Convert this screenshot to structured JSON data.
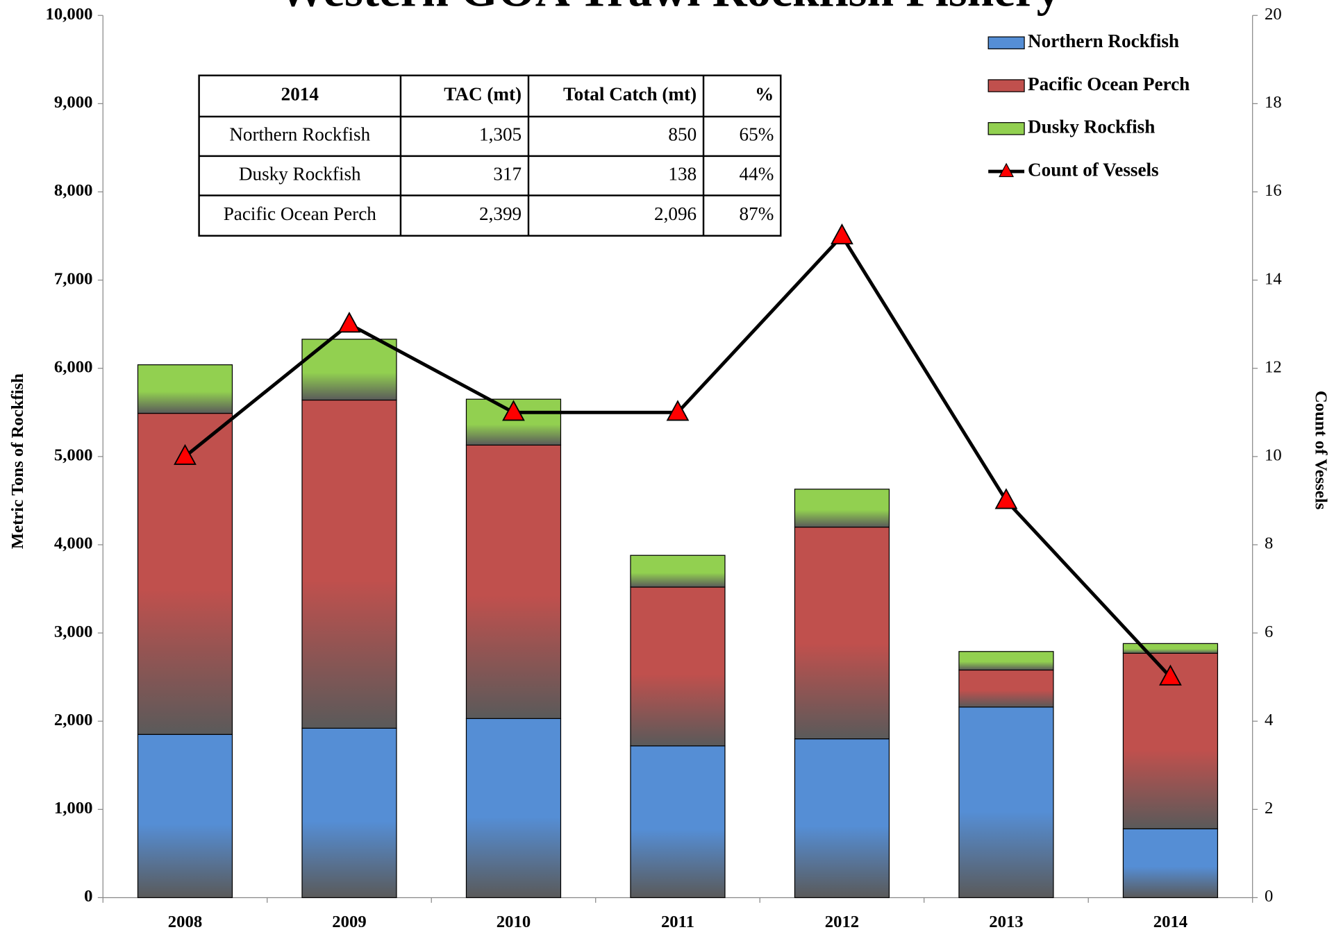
{
  "chart_data": {
    "type": "bar",
    "stacked": true,
    "title": "Western GOA Trawl Rockfish Fishery",
    "y_label": "Metric Tons of Rockfish",
    "y2_label": "Count of Vessels",
    "categories": [
      "2008",
      "2009",
      "2010",
      "2011",
      "2012",
      "2013",
      "2014"
    ],
    "series": [
      {
        "name": "Northern Rockfish",
        "color": "#558ed5",
        "values": [
          1850,
          1920,
          2030,
          1720,
          1800,
          2160,
          780
        ]
      },
      {
        "name": "Pacific Ocean Perch",
        "color": "#c0504d",
        "values": [
          3640,
          3720,
          3100,
          1800,
          2400,
          420,
          1990
        ]
      },
      {
        "name": "Dusky Rockfish",
        "color": "#92d050",
        "values": [
          550,
          690,
          520,
          360,
          430,
          210,
          110
        ]
      },
      {
        "name": "Count of Vessels",
        "type": "line",
        "axis": "y2",
        "color": "#000000",
        "marker_color": "#ff0000",
        "values": [
          10,
          13,
          11,
          11,
          15,
          9,
          5
        ]
      }
    ],
    "ylim": [
      0,
      10000
    ],
    "yticks": [
      0,
      {
        "value": 1000,
        "label": "1,000"
      },
      {
        "value": 2000,
        "label": "2,000"
      },
      {
        "value": 3000,
        "label": "3,000"
      },
      {
        "value": 4000,
        "label": "4,000"
      },
      {
        "value": 5000,
        "label": "5,000"
      },
      {
        "value": 6000,
        "label": "6,000"
      },
      {
        "value": 7000,
        "label": "7,000"
      },
      {
        "value": 8000,
        "label": "8,000"
      },
      {
        "value": 9000,
        "label": "9,000"
      },
      {
        "value": 10000,
        "label": "10,000"
      }
    ],
    "y2lim": [
      0,
      20
    ],
    "y2ticks": [
      0,
      2,
      4,
      6,
      8,
      10,
      12,
      14,
      16,
      18,
      20
    ],
    "legend": "upper right",
    "grid": false
  },
  "table": {
    "header": [
      "2014",
      "TAC (mt)",
      "Total Catch (mt)",
      "%"
    ],
    "rows": [
      [
        "Northern Rockfish",
        "1,305",
        "850",
        "65%"
      ],
      [
        "Dusky Rockfish",
        "317",
        "138",
        "44%"
      ],
      [
        "Pacific Ocean Perch",
        "2,399",
        "2,096",
        "87%"
      ]
    ]
  }
}
